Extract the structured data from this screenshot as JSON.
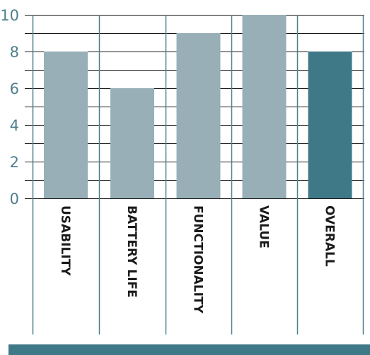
{
  "chart_data": {
    "type": "bar",
    "title": "",
    "xlabel": "",
    "ylabel": "",
    "categories": [
      "USABILITY",
      "BATTERY LIFE",
      "FUNCTIONALITY",
      "VALUE",
      "OVERALL"
    ],
    "values": [
      8,
      6,
      9,
      10,
      8
    ],
    "highlight_index": 4,
    "ylim": [
      0,
      10
    ],
    "yticks": [
      0,
      2,
      4,
      6,
      8,
      10
    ],
    "ytick_labels": [
      "0",
      "2",
      "4",
      "6",
      "8",
      "10"
    ],
    "grid": true,
    "legend": "none",
    "colors": {
      "bar": "#98afb8",
      "highlight_bar": "#3f7887",
      "axis_line": "#4e7f8e",
      "grid_line": "#1a1a1a",
      "tick_text": "#4e7f8e",
      "label_text": "#1a1a1a",
      "footer_bar": "#3f7887"
    }
  }
}
